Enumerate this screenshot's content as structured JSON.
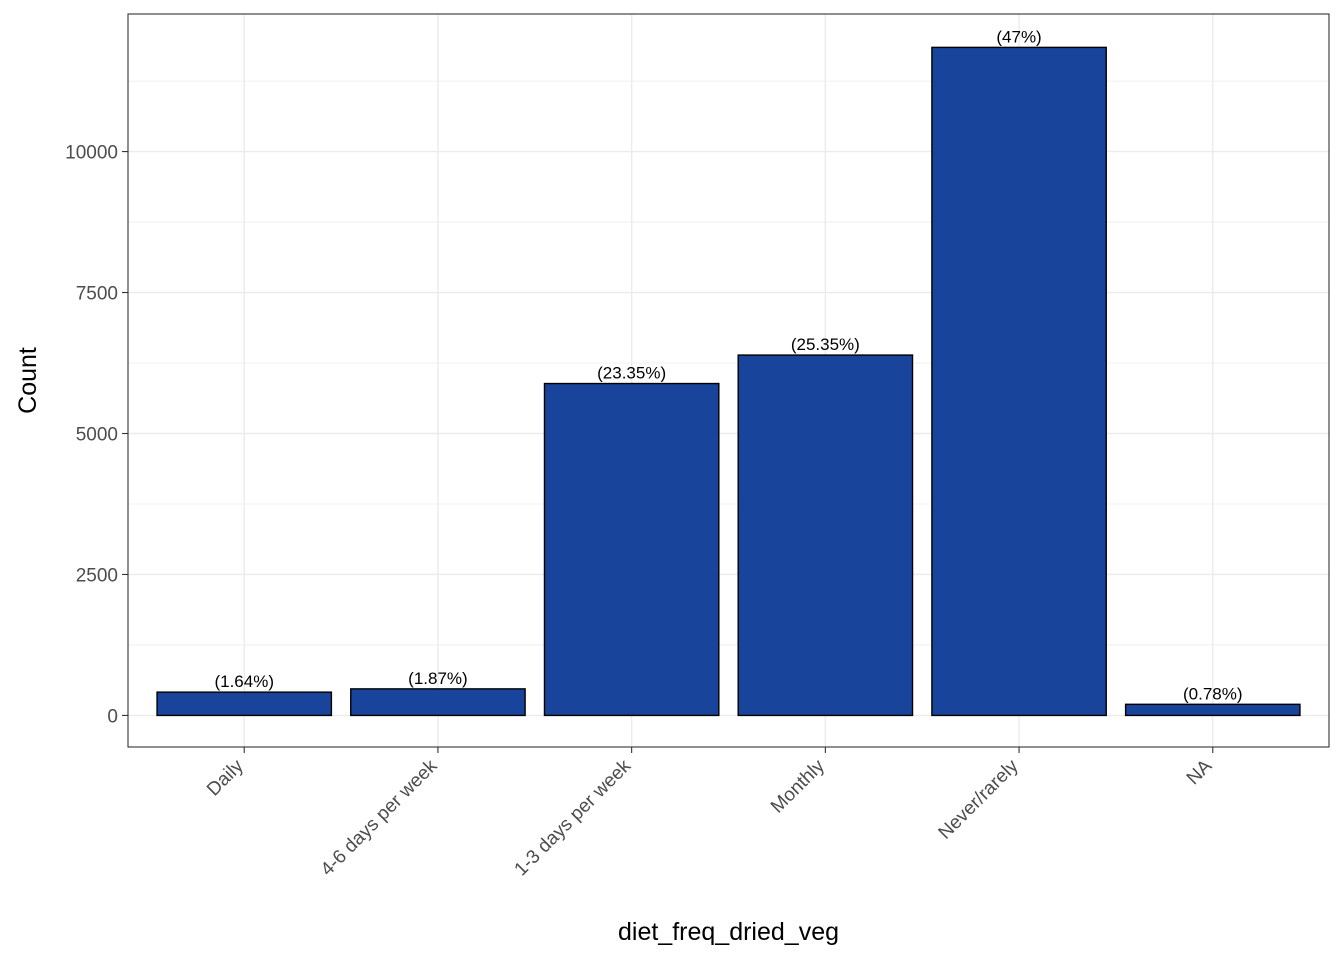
{
  "chart_data": {
    "type": "bar",
    "xlabel": "diet_freq_dried_veg",
    "ylabel": "Count",
    "categories": [
      "Daily",
      "4-6 days per week",
      "1-3 days per week",
      "Monthly",
      "Never/rarely",
      "NA"
    ],
    "values": [
      413,
      471,
      5886,
      6391,
      11848,
      197
    ],
    "labels": [
      "(1.64%)",
      "(1.87%)",
      "(23.35%)",
      "(25.35%)",
      "(47%)",
      "(0.78%)"
    ],
    "yticks": [
      0,
      2500,
      5000,
      7500,
      10000
    ],
    "ylim": [
      -560,
      12440
    ],
    "grid": true,
    "colors": {
      "bar_fill": "#19449b",
      "bar_stroke": "#000000",
      "grid": "#ebebeb",
      "panel_border": "#333333"
    }
  }
}
